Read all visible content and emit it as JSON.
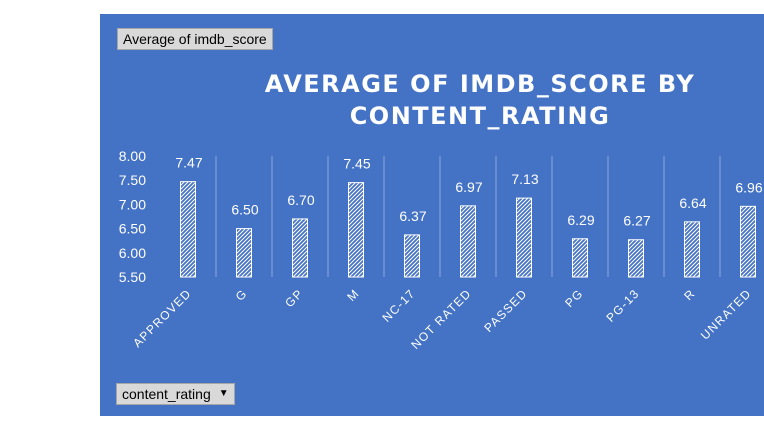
{
  "pivot": {
    "value_field_label": "Average of imdb_score",
    "axis_field_label": "content_rating",
    "axis_field_caret": "▼"
  },
  "colors": {
    "background": "#4472c4",
    "bar_stroke": "#ffffff",
    "bar_hatch": "#ffffff",
    "text": "#ffffff"
  },
  "chart_data": {
    "type": "bar",
    "title": "AVERAGE OF IMDB_SCORE BY CONTENT_RATING",
    "title_line1": "AVERAGE OF IMDB_SCORE BY",
    "title_line2": "CONTENT_RATING",
    "xlabel": "",
    "ylabel": "",
    "categories": [
      "APPROVED",
      "G",
      "GP",
      "M",
      "NC-17",
      "NOT RATED",
      "PASSED",
      "PG",
      "PG-13",
      "R",
      "UNRATED"
    ],
    "values": [
      7.47,
      6.5,
      6.7,
      7.45,
      6.37,
      6.97,
      7.13,
      6.29,
      6.27,
      6.64,
      6.96
    ],
    "value_labels": [
      "7.47",
      "6.50",
      "6.70",
      "7.45",
      "6.37",
      "6.97",
      "7.13",
      "6.29",
      "6.27",
      "6.64",
      "6.96"
    ],
    "ylim": [
      5.5,
      8.0
    ],
    "yticks": [
      "8.00",
      "7.50",
      "7.00",
      "6.50",
      "6.00",
      "5.50"
    ],
    "ytick_values": [
      8.0,
      7.5,
      7.0,
      6.5,
      6.0,
      5.5
    ],
    "legend": "none",
    "grid": "vertical category separators",
    "bar_fill": "diagonal hatch"
  }
}
